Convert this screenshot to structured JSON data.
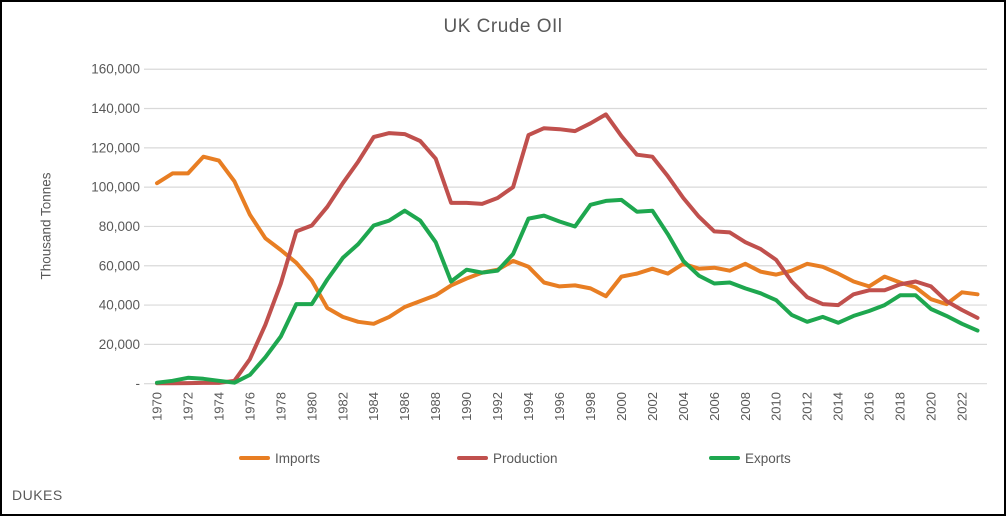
{
  "title": "UK Crude OIl",
  "source_label": "DUKES",
  "colors": {
    "imports": "#E87E23",
    "production": "#C0504D",
    "exports": "#1EA74F",
    "gridline": "#D9D9D9",
    "text": "#595959",
    "border": "#000000",
    "background": "#FFFFFF"
  },
  "chart_data": {
    "type": "line",
    "title": "UK Crude OIl",
    "xlabel": "",
    "ylabel": "Thousand Tonnes",
    "ylim": [
      0,
      160000
    ],
    "y_ticks": [
      0,
      20000,
      40000,
      60000,
      80000,
      100000,
      120000,
      140000,
      160000
    ],
    "y_tick_labels": [
      "-",
      "20,000",
      "40,000",
      "60,000",
      "80,000",
      "100,000",
      "120,000",
      "140,000",
      "160,000"
    ],
    "grid": true,
    "legend_position": "bottom",
    "x_start_year": 1970,
    "x_end_year": 2023,
    "x_tick_labels": [
      "1970",
      "1972",
      "1974",
      "1976",
      "1978",
      "1980",
      "1982",
      "1984",
      "1986",
      "1988",
      "1990",
      "1992",
      "1994",
      "1996",
      "1998",
      "2000",
      "2002",
      "2004",
      "2006",
      "2008",
      "2010",
      "2012",
      "2014",
      "2016",
      "2018",
      "2020",
      "2022"
    ],
    "x": [
      1970,
      1971,
      1972,
      1973,
      1974,
      1975,
      1976,
      1977,
      1978,
      1979,
      1980,
      1981,
      1982,
      1983,
      1984,
      1985,
      1986,
      1987,
      1988,
      1989,
      1990,
      1991,
      1992,
      1993,
      1994,
      1995,
      1996,
      1997,
      1998,
      1999,
      2000,
      2001,
      2002,
      2003,
      2004,
      2005,
      2006,
      2007,
      2008,
      2009,
      2010,
      2011,
      2012,
      2013,
      2014,
      2015,
      2016,
      2017,
      2018,
      2019,
      2020,
      2021,
      2022,
      2023
    ],
    "series": [
      {
        "name": "Imports",
        "color": "#E87E23",
        "values": [
          102000,
          107000,
          107000,
          115500,
          113500,
          103000,
          86000,
          74000,
          68000,
          61500,
          52500,
          38500,
          34000,
          31500,
          30500,
          34000,
          39000,
          42000,
          45000,
          50000,
          53500,
          56500,
          58000,
          62500,
          59500,
          51500,
          49500,
          50000,
          48500,
          44500,
          54500,
          56000,
          58500,
          56000,
          61000,
          58500,
          59000,
          57500,
          61000,
          57000,
          55500,
          57500,
          61000,
          59500,
          56000,
          52000,
          49500,
          54500,
          51500,
          49000,
          43000,
          40500,
          46500,
          45500
        ]
      },
      {
        "name": "Production",
        "color": "#C0504D",
        "values": [
          200,
          200,
          300,
          400,
          400,
          1500,
          12500,
          30000,
          51000,
          77500,
          80500,
          90000,
          102000,
          113000,
          125500,
          127500,
          127000,
          123500,
          114500,
          92000,
          92000,
          91500,
          94500,
          100000,
          126500,
          130000,
          129500,
          128500,
          132500,
          137000,
          126000,
          116500,
          115500,
          105500,
          94500,
          85000,
          77500,
          77000,
          72000,
          68500,
          63000,
          52000,
          44000,
          40500,
          40000,
          45500,
          47500,
          47500,
          50500,
          52000,
          49500,
          42000,
          37500,
          33500
        ]
      },
      {
        "name": "Exports",
        "color": "#1EA74F",
        "values": [
          500,
          1500,
          3000,
          2500,
          1500,
          500,
          4500,
          13500,
          24000,
          40500,
          40500,
          53000,
          64000,
          71000,
          80500,
          83000,
          88000,
          83000,
          72000,
          52000,
          58000,
          56500,
          57500,
          66000,
          84000,
          85500,
          82500,
          80000,
          91000,
          93000,
          93500,
          87500,
          88000,
          76000,
          62500,
          55000,
          51000,
          51500,
          48500,
          46000,
          42500,
          35000,
          31500,
          34000,
          31000,
          34500,
          37000,
          40000,
          45000,
          45000,
          38000,
          34500,
          30500,
          27000
        ]
      }
    ]
  }
}
